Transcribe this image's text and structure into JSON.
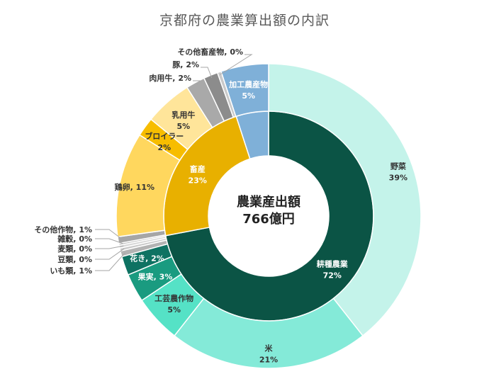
{
  "chart_data": {
    "type": "pie",
    "title": "京都府の農業算出額の内訳",
    "center_label": {
      "line1": "農業産出額",
      "line2": "766億円"
    },
    "inner_ring": [
      {
        "name": "耕種農業",
        "value": 72,
        "label": "72%",
        "color": "#0b5445",
        "text_color": "#ffffff"
      },
      {
        "name": "畜産",
        "value": 23,
        "label": "23%",
        "color": "#e8b000",
        "text_color": "#ffffff"
      },
      {
        "name": "加工農産物",
        "value": 5,
        "label": "5%",
        "color": "#7fb0d8",
        "text_color": "#ffffff"
      }
    ],
    "outer_ring": [
      {
        "name": "野菜",
        "value": 39,
        "label": "39%",
        "color": "#c4f3ea",
        "text_color": "#333333",
        "two_line": true
      },
      {
        "name": "米",
        "value": 21,
        "label": "21%",
        "color": "#84ead8",
        "text_color": "#333333",
        "two_line": true
      },
      {
        "name": "工芸農作物",
        "value": 5,
        "label": "5%",
        "color": "#55e2c6",
        "text_color": "#333333",
        "two_line": true
      },
      {
        "name": "果実",
        "value": 3,
        "label": "3%",
        "color": "#1a9b80",
        "text_color": "#ffffff",
        "two_line": false
      },
      {
        "name": "花き",
        "value": 2,
        "label": "2%",
        "color": "#0e7262",
        "text_color": "#ffffff",
        "two_line": false
      },
      {
        "name": "いも類",
        "value": 0.6,
        "label": "1%",
        "color": "#b3b3b3",
        "text_color": "#333333",
        "leader": true
      },
      {
        "name": "豆類",
        "value": 0.3,
        "label": "0%",
        "color": "#c8c8c8",
        "text_color": "#333333",
        "leader": true
      },
      {
        "name": "麦類",
        "value": 0.3,
        "label": "0%",
        "color": "#d8d8d8",
        "text_color": "#333333",
        "leader": true
      },
      {
        "name": "雑穀",
        "value": 0.2,
        "label": "0%",
        "color": "#bdbdbd",
        "text_color": "#333333",
        "leader": true
      },
      {
        "name": "その他作物",
        "value": 0.7,
        "label": "1%",
        "color": "#a6a6a6",
        "text_color": "#333333",
        "leader": true
      },
      {
        "name": "鶏卵",
        "value": 11,
        "label": "11%",
        "color": "#ffd75e",
        "text_color": "#333333",
        "two_line": false
      },
      {
        "name": "ブロイラー",
        "value": 2,
        "label": "2%",
        "color": "#f7bd00",
        "text_color": "#333333",
        "two_line": true
      },
      {
        "name": "乳用牛",
        "value": 5,
        "label": "5%",
        "color": "#ffe59a",
        "text_color": "#333333",
        "two_line": true
      },
      {
        "name": "肉用牛",
        "value": 2,
        "label": "2%",
        "color": "#a9a9a9",
        "text_color": "#333333",
        "leader": true
      },
      {
        "name": "豚",
        "value": 1.5,
        "label": "2%",
        "color": "#8c8c8c",
        "text_color": "#333333",
        "leader": true
      },
      {
        "name": "その他畜産物",
        "value": 0.4,
        "label": "0%",
        "color": "#c9c9c9",
        "text_color": "#333333",
        "leader": true
      },
      {
        "name": "加工農産物",
        "value": 5,
        "label": "5%",
        "color": "#7fb0d8",
        "text_color": "#ffffff",
        "two_line": true
      }
    ]
  }
}
